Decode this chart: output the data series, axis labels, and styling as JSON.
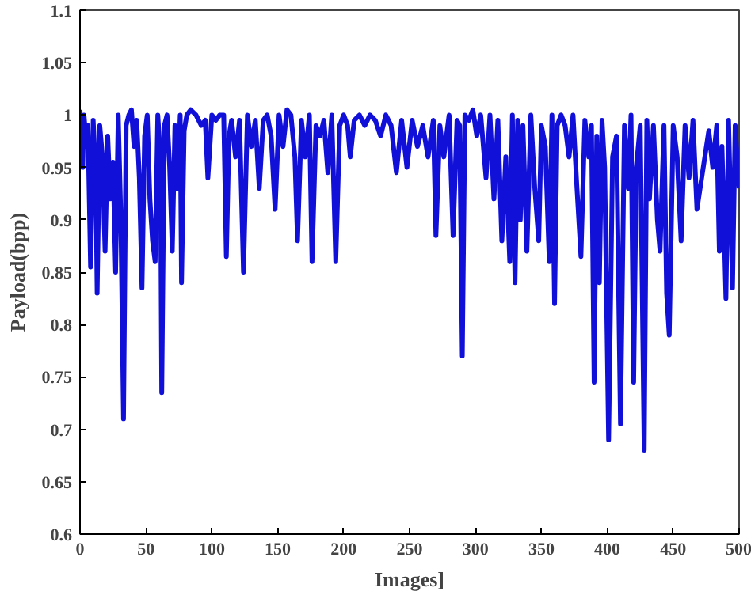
{
  "chart_data": {
    "type": "line",
    "xlabel": "Images]",
    "ylabel": "Payload(bpp)",
    "xlim": [
      0,
      500
    ],
    "ylim": [
      0.6,
      1.1
    ],
    "xticks": [
      0,
      50,
      100,
      150,
      200,
      250,
      300,
      350,
      400,
      450,
      500
    ],
    "yticks": [
      0.6,
      {
        "value": 0.65,
        "label": "0.65"
      },
      0.7,
      {
        "value": 0.75,
        "label": "0.75"
      },
      0.8,
      {
        "value": 0.85,
        "label": "0.85"
      },
      0.9,
      {
        "value": 0.95,
        "label": "0.95"
      },
      1,
      {
        "value": 1.05,
        "label": "1.05"
      },
      1.1
    ],
    "grid": false,
    "marker": "none",
    "line_style": "solid",
    "series": [
      {
        "color": "#1010d8",
        "x": [
          0,
          2,
          3,
          5,
          6,
          8,
          10,
          12,
          13,
          15,
          17,
          19,
          21,
          23,
          25,
          27,
          29,
          31,
          33,
          35,
          37,
          39,
          41,
          43,
          45,
          47,
          49,
          51,
          53,
          55,
          57,
          59,
          61,
          62,
          64,
          66,
          68,
          70,
          72,
          74,
          76,
          77,
          79,
          81,
          84,
          88,
          92,
          95,
          97,
          100,
          103,
          106,
          109,
          111,
          113,
          115,
          118,
          121,
          124,
          127,
          130,
          133,
          136,
          139,
          142,
          145,
          148,
          151,
          154,
          157,
          160,
          163,
          165,
          168,
          171,
          174,
          176,
          179,
          182,
          185,
          188,
          191,
          194,
          197,
          200,
          203,
          205,
          208,
          212,
          216,
          220,
          224,
          228,
          232,
          236,
          240,
          244,
          248,
          252,
          256,
          260,
          264,
          268,
          270,
          273,
          276,
          280,
          283,
          286,
          288,
          290,
          292,
          295,
          298,
          301,
          304,
          308,
          311,
          314,
          317,
          320,
          323,
          326,
          328,
          330,
          332,
          334,
          336,
          339,
          342,
          345,
          348,
          350,
          353,
          356,
          358,
          360,
          362,
          365,
          368,
          371,
          374,
          377,
          380,
          383,
          386,
          388,
          390,
          392,
          394,
          396,
          398,
          401,
          404,
          407,
          410,
          413,
          416,
          418,
          420,
          422,
          425,
          428,
          430,
          432,
          435,
          438,
          440,
          443,
          445,
          447,
          450,
          453,
          456,
          459,
          462,
          465,
          468,
          477,
          480,
          483,
          485,
          487,
          490,
          492,
          495,
          497,
          500
        ],
        "values": [
          1.005,
          0.95,
          1.0,
          0.97,
          0.99,
          0.855,
          0.995,
          0.94,
          0.83,
          0.99,
          0.96,
          0.87,
          0.98,
          0.92,
          0.955,
          0.85,
          1.0,
          0.9,
          0.71,
          0.99,
          1.0,
          1.005,
          0.97,
          0.995,
          0.94,
          0.835,
          0.98,
          1.0,
          0.92,
          0.88,
          0.86,
          1.0,
          0.96,
          0.735,
          0.99,
          1.0,
          0.95,
          0.87,
          0.99,
          0.93,
          1.0,
          0.84,
          0.985,
          1.0,
          1.005,
          1.0,
          0.99,
          0.995,
          0.94,
          1.0,
          0.995,
          1.0,
          1.0,
          0.865,
          0.98,
          0.995,
          0.96,
          0.995,
          0.85,
          1.0,
          0.97,
          0.995,
          0.93,
          0.995,
          1.0,
          0.98,
          0.91,
          1.0,
          0.97,
          1.005,
          1.0,
          0.96,
          0.88,
          0.995,
          0.96,
          1.0,
          0.86,
          0.99,
          0.98,
          0.995,
          0.945,
          1.0,
          0.86,
          0.99,
          1.0,
          0.99,
          0.96,
          0.995,
          1.0,
          0.99,
          1.0,
          0.995,
          0.98,
          1.0,
          0.99,
          0.945,
          0.995,
          0.95,
          0.995,
          0.97,
          0.99,
          0.96,
          0.995,
          0.885,
          0.99,
          0.96,
          1.0,
          0.885,
          0.995,
          0.99,
          0.77,
          1.0,
          0.995,
          1.005,
          0.98,
          1.0,
          0.94,
          1.0,
          0.92,
          0.995,
          0.88,
          0.96,
          0.86,
          1.0,
          0.84,
          0.995,
          0.9,
          0.99,
          0.87,
          1.0,
          0.93,
          0.88,
          0.99,
          0.97,
          0.86,
          1.0,
          0.82,
          0.99,
          1.0,
          0.99,
          0.96,
          1.0,
          0.93,
          0.865,
          0.995,
          0.96,
          0.99,
          0.745,
          0.98,
          0.84,
          0.995,
          0.95,
          0.69,
          0.96,
          0.98,
          0.705,
          0.99,
          0.93,
          1.0,
          0.745,
          0.95,
          0.99,
          0.68,
          0.995,
          0.92,
          0.99,
          0.9,
          0.87,
          0.99,
          0.83,
          0.79,
          0.99,
          0.96,
          0.88,
          0.99,
          0.94,
          0.995,
          0.91,
          0.985,
          0.95,
          0.99,
          0.87,
          0.97,
          0.825,
          0.995,
          0.835,
          0.99,
          0.93
        ]
      }
    ]
  }
}
